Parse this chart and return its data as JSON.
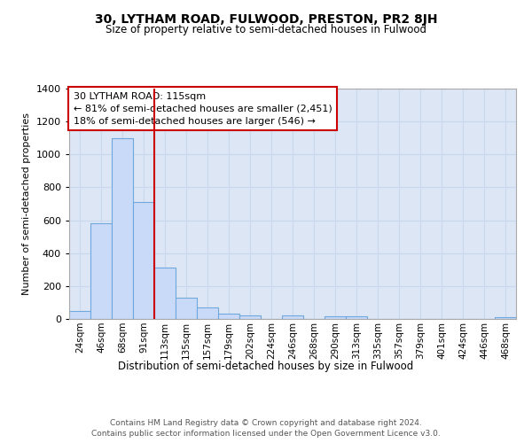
{
  "title": "30, LYTHAM ROAD, FULWOOD, PRESTON, PR2 8JH",
  "subtitle": "Size of property relative to semi-detached houses in Fulwood",
  "xlabel": "Distribution of semi-detached houses by size in Fulwood",
  "ylabel": "Number of semi-detached properties",
  "bar_labels": [
    "24sqm",
    "46sqm",
    "68sqm",
    "91sqm",
    "113sqm",
    "135sqm",
    "157sqm",
    "179sqm",
    "202sqm",
    "224sqm",
    "246sqm",
    "268sqm",
    "290sqm",
    "313sqm",
    "335sqm",
    "357sqm",
    "379sqm",
    "401sqm",
    "424sqm",
    "446sqm",
    "468sqm"
  ],
  "bar_values": [
    50,
    580,
    1100,
    710,
    310,
    130,
    70,
    35,
    20,
    0,
    20,
    0,
    15,
    15,
    0,
    0,
    0,
    0,
    0,
    0,
    10
  ],
  "bar_color": "#c9daf8",
  "bar_edge_color": "#6fa8dc",
  "vline_pos": 3.5,
  "vline_color": "#cc0000",
  "annotation_title": "30 LYTHAM ROAD: 115sqm",
  "annotation_line1": "← 81% of semi-detached houses are smaller (2,451)",
  "annotation_line2": "18% of semi-detached houses are larger (546) →",
  "annotation_box_color": "#ffffff",
  "annotation_box_edge": "#cc0000",
  "ylim": [
    0,
    1400
  ],
  "yticks": [
    0,
    200,
    400,
    600,
    800,
    1000,
    1200,
    1400
  ],
  "grid_color": "#c9d7f0",
  "bg_color": "#dce6f5",
  "footer1": "Contains HM Land Registry data © Crown copyright and database right 2024.",
  "footer2": "Contains public sector information licensed under the Open Government Licence v3.0."
}
